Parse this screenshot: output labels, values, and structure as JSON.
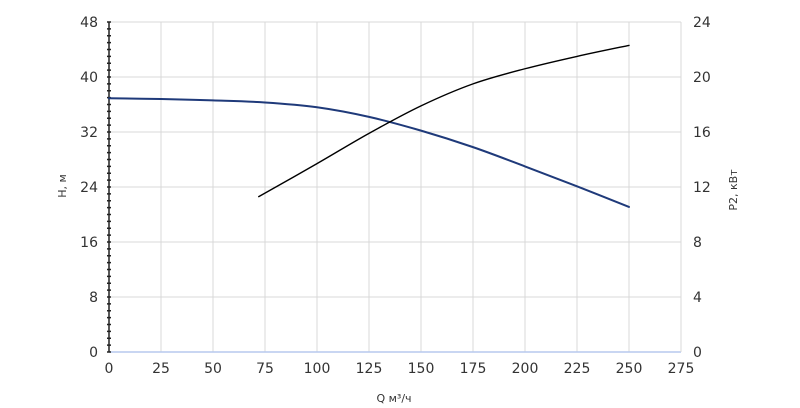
{
  "chart_data": {
    "type": "line",
    "xlabel": "Q м³/ч",
    "ylabel_left": "H, м",
    "ylabel_right": "P2, кВт",
    "xlim": [
      0,
      275
    ],
    "ylim_left": [
      0,
      48
    ],
    "ylim_right": [
      0,
      24
    ],
    "x_ticks": [
      0,
      25,
      50,
      75,
      100,
      125,
      150,
      175,
      200,
      225,
      250,
      275
    ],
    "y_left_ticks": [
      0,
      8,
      16,
      24,
      32,
      40,
      48
    ],
    "y_right_ticks": [
      0,
      4,
      8,
      12,
      16,
      20,
      24
    ],
    "grid": true,
    "series": [
      {
        "axis": "left",
        "color": "#1f3a7a",
        "x": [
          0,
          25,
          50,
          75,
          100,
          125,
          150,
          175,
          200,
          225,
          250
        ],
        "y": [
          36.9,
          36.8,
          36.6,
          36.3,
          35.6,
          34.2,
          32.2,
          29.8,
          27.0,
          24.1,
          21.1
        ]
      },
      {
        "axis": "right",
        "color": "#000000",
        "x": [
          72,
          100,
          125,
          150,
          175,
          200,
          225,
          250
        ],
        "y": [
          11.3,
          13.7,
          15.9,
          17.9,
          19.5,
          20.6,
          21.5,
          22.3
        ]
      }
    ]
  }
}
